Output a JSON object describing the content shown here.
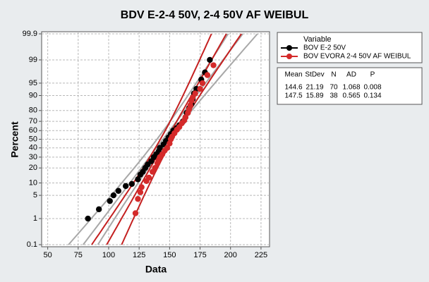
{
  "chart_data": {
    "type": "probability",
    "title": "BDV E-2-4 50V, 2-4 50V AF WEIBUL",
    "x_label": "Data",
    "y_label": "Percent",
    "y_scale": "normal-probability",
    "grid": true,
    "xlim": [
      45,
      232
    ],
    "xticks": [
      50,
      75,
      100,
      125,
      150,
      175,
      200,
      225
    ],
    "ylim": [
      0.1,
      99.9
    ],
    "yticks": [
      0.1,
      1,
      5,
      10,
      20,
      30,
      40,
      50,
      60,
      70,
      80,
      90,
      95,
      99,
      99.9
    ],
    "legend_title": "Variable",
    "legend_position": "right",
    "series": [
      {
        "name": "BOV E-2 50V",
        "color": "#000000",
        "line_color": "#a8a8a8",
        "x": [
          83,
          92,
          101,
          104,
          108,
          114,
          119,
          124,
          126,
          128,
          130,
          132,
          135,
          137,
          139,
          141,
          142,
          145,
          147,
          149,
          151,
          153,
          156,
          158,
          161,
          163,
          164,
          166,
          168,
          169,
          170,
          172,
          176,
          179,
          183
        ],
        "values": [
          1,
          2,
          3.5,
          5,
          6.5,
          8.5,
          9.5,
          12,
          15,
          17,
          20,
          23,
          26,
          30,
          33,
          36,
          40,
          44,
          48,
          52,
          56,
          60,
          63,
          66,
          70,
          74,
          78,
          82,
          85,
          88,
          91,
          93,
          96,
          97.5,
          99
        ]
      },
      {
        "name": "BOV EVORA 2-4 50V AF WEIBUL",
        "color": "#d42a2a",
        "line_color": "#c42020",
        "x": [
          122,
          124,
          126,
          127,
          131,
          133,
          136,
          138,
          140,
          141,
          142,
          144,
          146,
          148,
          150,
          151,
          152,
          154,
          156,
          158,
          160,
          162,
          163,
          165,
          166,
          167,
          168,
          169,
          171,
          175,
          177,
          181,
          186
        ],
        "values": [
          1.5,
          4,
          6,
          8,
          11,
          13,
          17,
          20,
          24,
          27,
          30,
          33,
          37,
          40,
          45,
          50,
          53,
          57,
          61,
          64,
          68,
          71,
          74,
          78,
          81,
          84,
          87,
          89,
          91,
          93,
          95,
          97,
          98.5
        ]
      }
    ],
    "stats": {
      "columns": [
        "Mean",
        "StDev",
        "N",
        "AD",
        "P"
      ],
      "rows": [
        [
          144.6,
          21.19,
          70,
          1.068,
          0.008
        ],
        [
          147.5,
          15.89,
          38,
          0.565,
          0.134
        ]
      ]
    }
  }
}
